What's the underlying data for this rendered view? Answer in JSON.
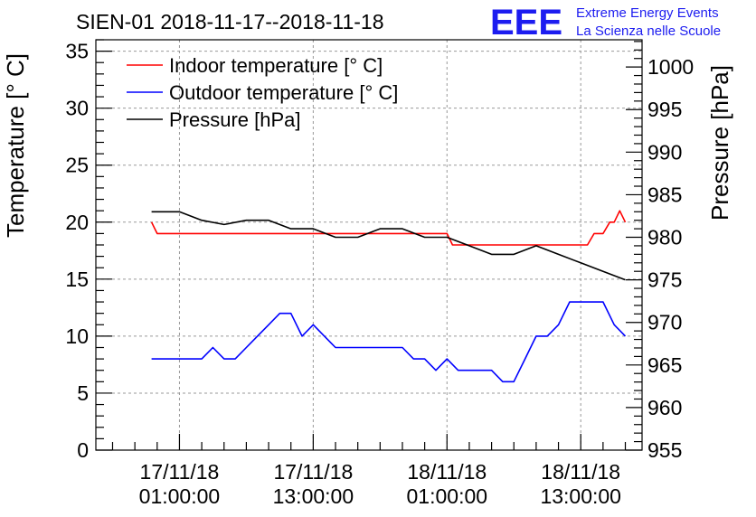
{
  "chart_data": {
    "type": "line",
    "title": "SIEN-01 2018-11-17--2018-11-18",
    "branding": {
      "logo_text": "EEE",
      "line1": "Extreme Energy Events",
      "line2": "La Scienza nelle Scuole",
      "color": "#1c1cf0"
    },
    "ylabel": "Temperature [° C]",
    "ylabel_right": "Pressure [hPa]",
    "ylim": [
      0,
      36
    ],
    "ylim_right": [
      955,
      1003.2
    ],
    "yticks": [
      0,
      5,
      10,
      15,
      20,
      25,
      30,
      35
    ],
    "yticks_right": [
      955,
      960,
      965,
      970,
      975,
      980,
      985,
      990,
      995,
      1000
    ],
    "x_hours_range": [
      -7.5,
      41.5
    ],
    "x_ticks": [
      {
        "hour": 0,
        "date": "17/11/18",
        "time": "01:00:00"
      },
      {
        "hour": 12,
        "date": "17/11/18",
        "time": "13:00:00"
      },
      {
        "hour": 24,
        "date": "18/11/18",
        "time": "01:00:00"
      },
      {
        "hour": 36,
        "date": "18/11/18",
        "time": "13:00:00"
      }
    ],
    "legend": [
      {
        "label": "Indoor temperature [° C]",
        "color": "#ff0000"
      },
      {
        "label": "Outdoor temperature [° C]",
        "color": "#0000ff"
      },
      {
        "label": "Pressure [hPa]",
        "color": "#000000"
      }
    ],
    "series": [
      {
        "name": "Indoor temperature [° C]",
        "axis": "left",
        "color": "#ff0000",
        "x": [
          -2.5,
          -2,
          0,
          8,
          16,
          24,
          24.5,
          36,
          36.6,
          37.2,
          38,
          38.6,
          39,
          39.5,
          40
        ],
        "y": [
          20,
          19,
          19,
          19,
          19,
          19,
          18,
          18,
          18,
          19,
          19,
          20,
          20,
          21,
          20
        ]
      },
      {
        "name": "Outdoor temperature [° C]",
        "axis": "left",
        "color": "#0000ff",
        "x": [
          -2.5,
          1,
          2,
          3,
          4,
          5,
          6,
          7,
          8,
          9,
          10,
          11,
          12,
          13,
          14,
          15,
          16,
          17,
          18,
          19,
          20,
          21,
          22,
          23,
          24,
          25,
          26,
          27,
          28,
          29,
          30,
          31,
          32,
          33,
          34,
          35,
          36,
          37,
          38,
          39,
          40
        ],
        "y": [
          8,
          8,
          8,
          9,
          8,
          8,
          9,
          10,
          11,
          12,
          12,
          10,
          11,
          10,
          9,
          9,
          9,
          9,
          9,
          9,
          9,
          8,
          8,
          7,
          8,
          7,
          7,
          7,
          7,
          6,
          6,
          8,
          10,
          10,
          11,
          13,
          13,
          13,
          13,
          11,
          10
        ]
      },
      {
        "name": "Pressure [hPa]",
        "axis": "right",
        "color": "#000000",
        "x": [
          -2.5,
          0,
          2,
          4,
          6,
          8,
          10,
          12,
          14,
          16,
          18,
          20,
          22,
          24,
          26,
          28,
          30,
          32,
          34,
          36,
          38,
          40
        ],
        "y": [
          983,
          983,
          982,
          981.5,
          982,
          982,
          981,
          981,
          980,
          980,
          981,
          981,
          980,
          980,
          979,
          978,
          978,
          979,
          978,
          977,
          976,
          975
        ]
      }
    ]
  }
}
